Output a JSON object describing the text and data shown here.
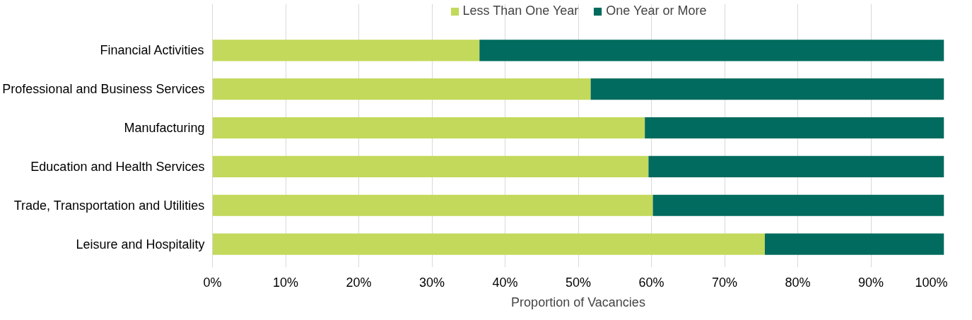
{
  "chart_data": {
    "type": "bar",
    "orientation": "horizontal",
    "stacked": true,
    "xlabel": "Proportion of Vacancies",
    "categories": [
      "Financial Activities",
      "Professional and Business Services",
      "Manufacturing",
      "Education and Health Services",
      "Trade, Transportation and Utilities",
      "Leisure and Hospitality"
    ],
    "series": [
      {
        "name": "Less Than One Year",
        "color": "#c2d95b",
        "values": [
          36.5,
          51.7,
          59.1,
          59.6,
          60.2,
          75.5
        ]
      },
      {
        "name": "One Year or More",
        "color": "#006b5e",
        "values": [
          63.5,
          48.3,
          40.9,
          40.4,
          39.8,
          24.5
        ]
      }
    ],
    "xlim": [
      0,
      100
    ],
    "xticks": [
      {
        "value": 0,
        "label": "0%"
      },
      {
        "value": 10,
        "label": "10%"
      },
      {
        "value": 20,
        "label": "20%"
      },
      {
        "value": 30,
        "label": "30%"
      },
      {
        "value": 40,
        "label": "40%"
      },
      {
        "value": 50,
        "label": "50%"
      },
      {
        "value": 60,
        "label": "60%"
      },
      {
        "value": 70,
        "label": "70%"
      },
      {
        "value": 80,
        "label": "80%"
      },
      {
        "value": 90,
        "label": "90%"
      },
      {
        "value": 100,
        "label": "100%"
      }
    ],
    "grid": "x",
    "legend": "top"
  }
}
